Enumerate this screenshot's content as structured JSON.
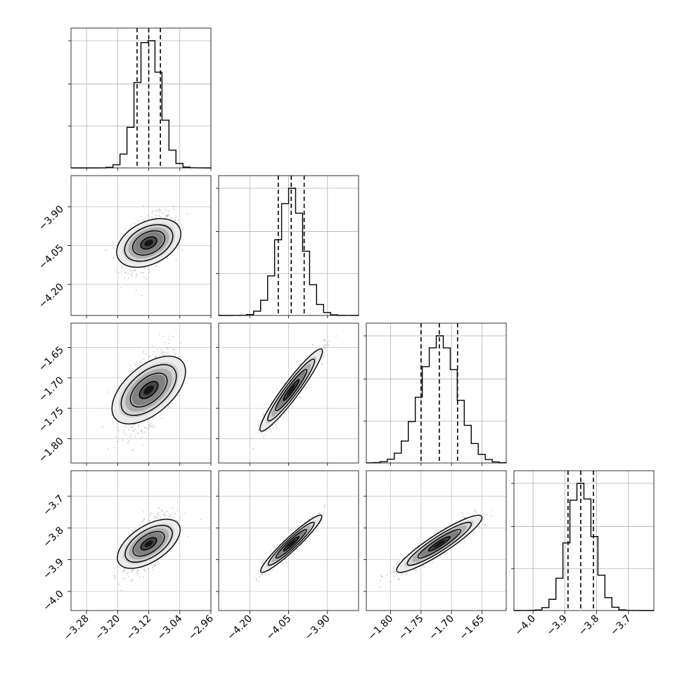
{
  "chart_data": {
    "type": "corner",
    "n_params": 4,
    "grid": true,
    "parameters": [
      {
        "range": [
          -3.32,
          -2.96
        ],
        "ticks": [
          -3.28,
          -3.2,
          -3.12,
          -3.04,
          -2.96
        ],
        "tick_labels": [
          "−3.28",
          "−3.20",
          "−3.12",
          "−3.04",
          "−2.96"
        ],
        "quantiles": [
          -3.15,
          -3.12,
          -3.09
        ],
        "median": -3.12,
        "sigma": 0.03
      },
      {
        "range": [
          -4.32,
          -3.78
        ],
        "ticks": [
          -4.2,
          -4.05,
          -3.9
        ],
        "tick_labels": [
          "−4.20",
          "−4.05",
          "−3.90"
        ],
        "quantiles": [
          -4.09,
          -4.04,
          -3.99
        ],
        "median": -4.04,
        "sigma": 0.05
      },
      {
        "range": [
          -1.84,
          -1.61
        ],
        "ticks": [
          -1.8,
          -1.75,
          -1.7,
          -1.65
        ],
        "tick_labels": [
          "−1.80",
          "−1.75",
          "−1.70",
          "−1.65"
        ],
        "quantiles": [
          -1.75,
          -1.72,
          -1.69
        ],
        "median": -1.72,
        "sigma": 0.03
      },
      {
        "range": [
          -4.06,
          -3.62
        ],
        "ticks": [
          -4.0,
          -3.9,
          -3.8,
          -3.7
        ],
        "tick_labels": [
          "−4.0",
          "−3.9",
          "−3.8",
          "−3.7"
        ],
        "quantiles": [
          -3.89,
          -3.85,
          -3.81
        ],
        "median": -3.85,
        "sigma": 0.04
      }
    ],
    "correlations": [
      [
        1.0,
        0.45,
        0.55,
        0.6
      ],
      [
        0.45,
        1.0,
        0.95,
        0.95
      ],
      [
        0.55,
        0.95,
        1.0,
        0.93
      ],
      [
        0.6,
        0.95,
        0.93,
        1.0
      ]
    ],
    "histogram_bins": 20,
    "contour_levels_sigma": [
      0.5,
      1.0,
      1.5,
      2.0
    ],
    "colors": {
      "line": "#000000",
      "grid": "#b0b0b0",
      "points": "#9a9a9a",
      "density": "#000000"
    }
  }
}
